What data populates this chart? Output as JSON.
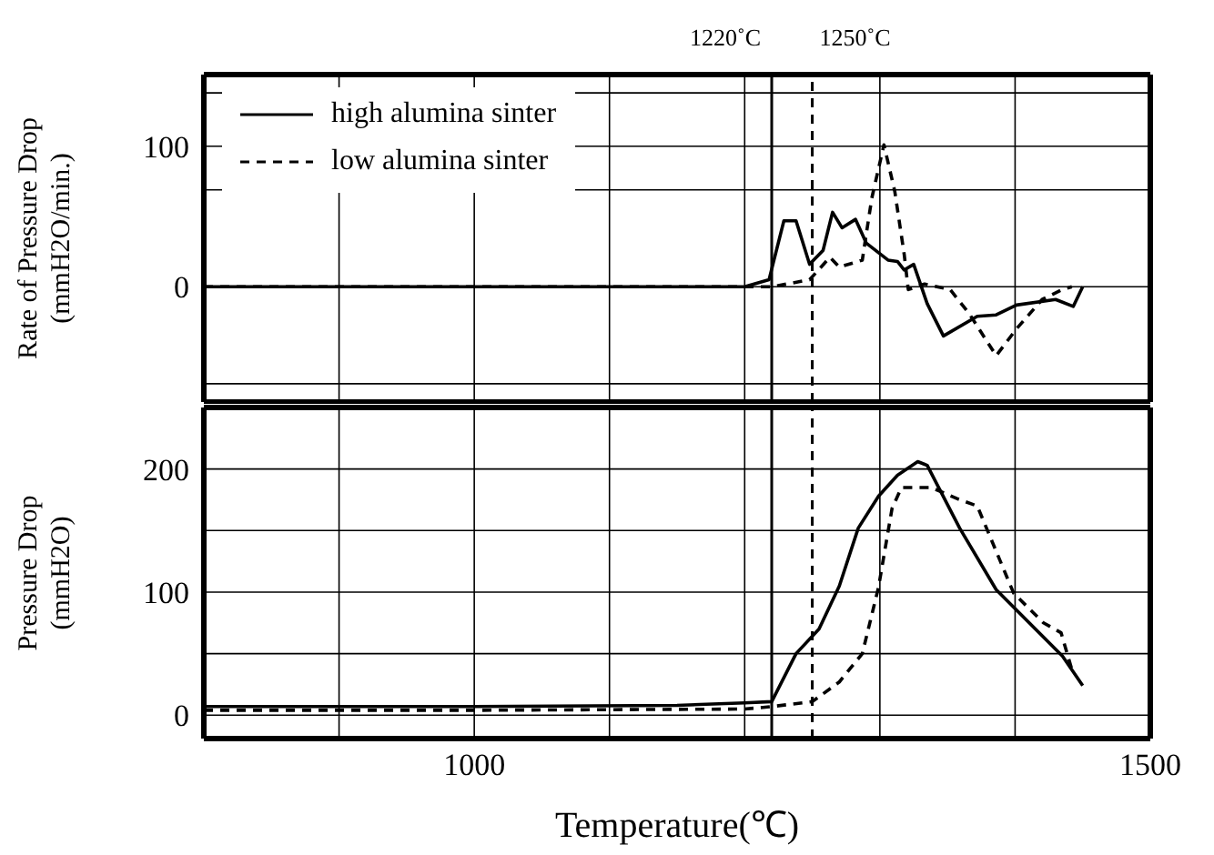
{
  "chart_data": [
    {
      "type": "line",
      "ylabel": "Rate of Pressure Drop (mmH2O/min.)",
      "xlim": [
        800,
        1500
      ],
      "xticks": [
        {
          "value": 800,
          "label": null
        },
        {
          "value": 900,
          "label": null
        },
        {
          "value": 1000,
          "label": null
        },
        {
          "value": 1100,
          "label": null
        },
        {
          "value": 1200,
          "label": null
        },
        {
          "value": 1300,
          "label": null
        },
        {
          "value": 1400,
          "label": null
        },
        {
          "value": 1500,
          "label": null
        }
      ],
      "ylim": [
        -82,
        151
      ],
      "yticks": [
        {
          "value": -69,
          "label": null
        },
        0,
        {
          "value": 69,
          "label": null
        },
        100,
        {
          "value": 138,
          "label": null
        }
      ],
      "tick_labels": "y",
      "grid": true,
      "legend": "top left",
      "series": [
        {
          "name": "high alumina sinter",
          "color": "#000000",
          "line_style": "solid",
          "x": [
            800,
            1000,
            1200,
            1218,
            1229,
            1238,
            1248,
            1258,
            1265,
            1272,
            1282,
            1290,
            1306,
            1313,
            1318,
            1325,
            1335,
            1347,
            1372,
            1386,
            1401,
            1430,
            1443,
            1450
          ],
          "values": [
            0,
            0,
            0,
            5,
            47,
            47,
            16,
            26,
            53,
            42,
            48,
            31,
            19,
            18,
            12,
            16,
            -12,
            -35,
            -21,
            -20,
            -13,
            -9,
            -14,
            0
          ]
        },
        {
          "name": "low alumina sinter",
          "color": "#000000",
          "line_style": "dashed",
          "x": [
            800,
            1000,
            1220,
            1248,
            1263,
            1270,
            1287,
            1294,
            1303,
            1311,
            1318,
            1321,
            1333,
            1352,
            1366,
            1386,
            1401,
            1420,
            1435,
            1442
          ],
          "values": [
            0,
            0,
            0,
            5,
            21,
            14,
            19,
            63,
            101,
            68,
            23,
            -2,
            2,
            -2,
            -19,
            -49,
            -30,
            -9,
            -2,
            0
          ]
        }
      ],
      "ref_lines": [
        {
          "axis": "x",
          "value": 1220,
          "label": "1220˚C",
          "line_style": "solid",
          "color": "#000000"
        },
        {
          "axis": "x",
          "value": 1250,
          "label": "1250˚C",
          "line_style": "dashed",
          "color": "#000000"
        }
      ]
    },
    {
      "type": "line",
      "xlabel": "Temperature(℃)",
      "ylabel": "Pressure Drop (mmH2O)",
      "xlim": [
        800,
        1500
      ],
      "xticks": [
        {
          "value": 800,
          "label": null
        },
        {
          "value": 900,
          "label": null
        },
        1000,
        {
          "value": 1100,
          "label": null
        },
        {
          "value": 1200,
          "label": null
        },
        {
          "value": 1300,
          "label": null
        },
        {
          "value": 1400,
          "label": null
        },
        1500
      ],
      "ylim": [
        -19,
        250
      ],
      "yticks": [
        0,
        {
          "value": 50,
          "label": null
        },
        100,
        {
          "value": 150,
          "label": null
        },
        200
      ],
      "grid": true,
      "series": [
        {
          "color": "#000000",
          "line_style": "solid",
          "x": [
            800,
            1000,
            1150,
            1200,
            1220,
            1238,
            1255,
            1270,
            1284,
            1299,
            1313,
            1328,
            1335,
            1359,
            1386,
            1415,
            1435,
            1450
          ],
          "values": [
            7,
            7,
            8,
            10,
            11,
            50,
            70,
            105,
            152,
            178,
            195,
            206,
            203,
            152,
            102,
            70,
            48,
            24
          ]
        },
        {
          "color": "#000000",
          "line_style": "dashed",
          "x": [
            800,
            1000,
            1200,
            1220,
            1250,
            1270,
            1287,
            1299,
            1309,
            1316,
            1338,
            1357,
            1372,
            1399,
            1421,
            1434,
            1442
          ],
          "values": [
            4,
            4,
            5,
            7,
            11,
            27,
            50,
            104,
            168,
            185,
            185,
            176,
            170,
            99,
            75,
            67,
            37
          ]
        }
      ],
      "ref_lines": [
        {
          "axis": "x",
          "value": 1220,
          "label": null,
          "line_style": "solid",
          "color": "#000000"
        },
        {
          "axis": "x",
          "value": 1250,
          "label": null,
          "line_style": "dashed",
          "color": "#000000"
        }
      ]
    }
  ]
}
